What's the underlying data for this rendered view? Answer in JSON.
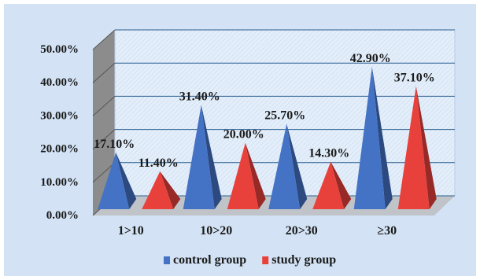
{
  "chart_data": {
    "type": "bar",
    "style": "3d-pyramid",
    "categories": [
      "1>10",
      "10>20",
      "20>30",
      "≥30"
    ],
    "series": [
      {
        "name": "control group",
        "color": "#4472C4",
        "values": [
          17.1,
          31.4,
          25.7,
          42.9
        ],
        "labels": [
          "17.10%",
          "31.40%",
          "25.70%",
          "42.90%"
        ]
      },
      {
        "name": "study group",
        "color": "#E8413C",
        "values": [
          11.4,
          20.0,
          14.3,
          37.1
        ],
        "labels": [
          "11.40%",
          "20.00%",
          "14.30%",
          "37.10%"
        ]
      }
    ],
    "ylim": [
      0,
      50
    ],
    "yticks": [
      {
        "value": 0,
        "label": "0.00%"
      },
      {
        "value": 10,
        "label": "10.00%"
      },
      {
        "value": 20,
        "label": "20.00%"
      },
      {
        "value": 30,
        "label": "30.00%"
      },
      {
        "value": 40,
        "label": "40.00%"
      },
      {
        "value": 50,
        "label": "50.00%"
      }
    ],
    "grid": true,
    "legend_position": "bottom",
    "background_color": "#d3e3f5",
    "wall_color": "#e6f0fb",
    "side_wall_color": "#8a8a8a"
  }
}
